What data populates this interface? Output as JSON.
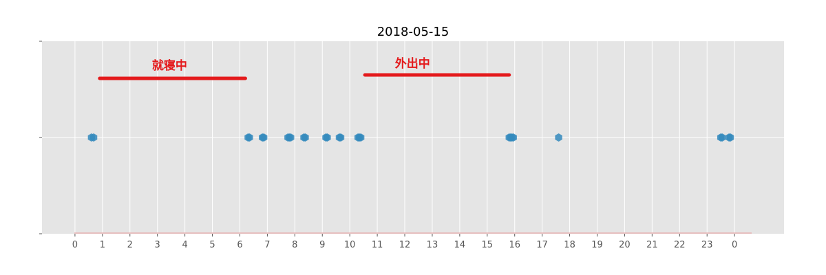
{
  "chart_data": {
    "type": "scatter",
    "title": "2018-05-15",
    "xlabel": "",
    "ylabel": "",
    "xlim": [
      -1.2,
      25.8
    ],
    "grid": true,
    "x_tick_values": [
      0,
      1,
      2,
      3,
      4,
      5,
      6,
      7,
      8,
      9,
      10,
      11,
      12,
      13,
      14,
      15,
      16,
      17,
      18,
      19,
      20,
      21,
      22,
      23,
      24
    ],
    "x_tick_labels": [
      "0",
      "1",
      "2",
      "3",
      "4",
      "5",
      "6",
      "7",
      "8",
      "9",
      "10",
      "11",
      "12",
      "13",
      "14",
      "15",
      "16",
      "17",
      "18",
      "19",
      "20",
      "21",
      "22",
      "23",
      "0"
    ],
    "points": [
      {
        "x": 0.6
      },
      {
        "x": 0.68
      },
      {
        "x": 6.3
      },
      {
        "x": 6.35
      },
      {
        "x": 6.82
      },
      {
        "x": 6.87
      },
      {
        "x": 7.75
      },
      {
        "x": 7.8
      },
      {
        "x": 7.85
      },
      {
        "x": 8.33
      },
      {
        "x": 8.38
      },
      {
        "x": 9.13
      },
      {
        "x": 9.18
      },
      {
        "x": 9.62
      },
      {
        "x": 9.67
      },
      {
        "x": 10.3
      },
      {
        "x": 10.35
      },
      {
        "x": 10.4
      },
      {
        "x": 15.8
      },
      {
        "x": 15.85
      },
      {
        "x": 15.9
      },
      {
        "x": 15.95
      },
      {
        "x": 17.6
      },
      {
        "x": 23.5
      },
      {
        "x": 23.55
      },
      {
        "x": 23.8
      },
      {
        "x": 23.85
      }
    ],
    "annotations": [
      {
        "label": "就寝中",
        "start": 0.9,
        "end": 6.2
      },
      {
        "label": "外出中",
        "start": 10.55,
        "end": 15.8
      }
    ],
    "colors": {
      "background": "#e5e5e5",
      "grid": "#ffffff",
      "marker": "#348abd",
      "annotation": "#e41a1c",
      "baseline": "#e8a8a8",
      "tick": "#555555"
    }
  }
}
